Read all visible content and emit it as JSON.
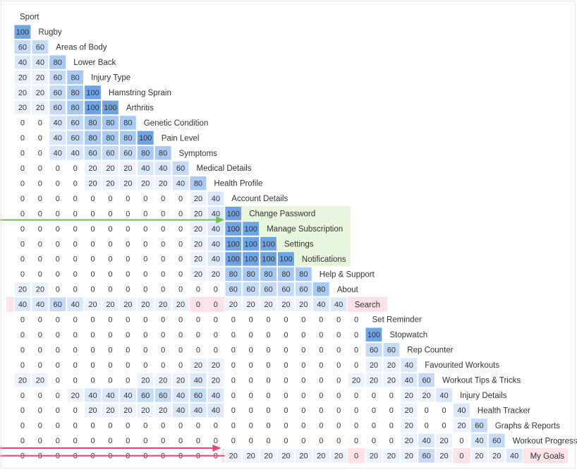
{
  "chart_data": {
    "type": "heatmap",
    "title": "",
    "labels": [
      "Sport",
      "Rugby",
      "Areas of Body",
      "Lower Back",
      "Injury Type",
      "Hamstring Sprain",
      "Arthritis",
      "Genetic Condition",
      "Pain Level",
      "Symptoms",
      "Medical Details",
      "Health Profile",
      "Account Details",
      "Change Password",
      "Manage Subscription",
      "Settings",
      "Notifications",
      "Help & Support",
      "About",
      "Search",
      "Set Reminder",
      "Stopwatch",
      "Rep Counter",
      "Favourited Workouts",
      "Workout Tips & Tricks",
      "Injury Details",
      "Health Tracker",
      "Graphs & Reports",
      "Workout Progress",
      "My Goals"
    ],
    "rows": [
      [],
      [
        100
      ],
      [
        60,
        60
      ],
      [
        40,
        40,
        80
      ],
      [
        20,
        20,
        60,
        80
      ],
      [
        20,
        20,
        60,
        80,
        100
      ],
      [
        20,
        20,
        60,
        80,
        100,
        100
      ],
      [
        0,
        0,
        40,
        60,
        80,
        80,
        80
      ],
      [
        0,
        0,
        40,
        60,
        80,
        80,
        80,
        100
      ],
      [
        0,
        0,
        40,
        40,
        60,
        60,
        60,
        80,
        80
      ],
      [
        0,
        0,
        0,
        0,
        20,
        20,
        20,
        40,
        40,
        60
      ],
      [
        0,
        0,
        0,
        0,
        20,
        20,
        20,
        20,
        20,
        40,
        80
      ],
      [
        0,
        0,
        0,
        0,
        0,
        0,
        0,
        0,
        0,
        0,
        20,
        40
      ],
      [
        0,
        0,
        0,
        0,
        0,
        0,
        0,
        0,
        0,
        0,
        20,
        40,
        100
      ],
      [
        0,
        0,
        0,
        0,
        0,
        0,
        0,
        0,
        0,
        0,
        20,
        40,
        100,
        100
      ],
      [
        0,
        0,
        0,
        0,
        0,
        0,
        0,
        0,
        0,
        0,
        20,
        40,
        100,
        100,
        100
      ],
      [
        0,
        0,
        0,
        0,
        0,
        0,
        0,
        0,
        0,
        0,
        20,
        40,
        100,
        100,
        100,
        100
      ],
      [
        0,
        0,
        0,
        0,
        0,
        0,
        0,
        0,
        0,
        0,
        20,
        20,
        80,
        80,
        80,
        80,
        80
      ],
      [
        20,
        20,
        0,
        0,
        0,
        0,
        0,
        0,
        0,
        0,
        0,
        0,
        60,
        60,
        60,
        60,
        60,
        80
      ],
      [
        40,
        40,
        60,
        40,
        20,
        20,
        20,
        20,
        20,
        20,
        0,
        0,
        20,
        20,
        20,
        20,
        20,
        40,
        40
      ],
      [
        0,
        0,
        0,
        0,
        0,
        0,
        0,
        0,
        0,
        0,
        0,
        0,
        0,
        0,
        0,
        0,
        0,
        0,
        0,
        0
      ],
      [
        0,
        0,
        0,
        0,
        0,
        0,
        0,
        0,
        0,
        0,
        0,
        0,
        0,
        0,
        0,
        0,
        0,
        0,
        0,
        0,
        100
      ],
      [
        0,
        0,
        0,
        0,
        0,
        0,
        0,
        0,
        0,
        0,
        0,
        0,
        0,
        0,
        0,
        0,
        0,
        0,
        0,
        0,
        60,
        60
      ],
      [
        0,
        0,
        0,
        0,
        0,
        0,
        0,
        0,
        0,
        0,
        20,
        20,
        0,
        0,
        0,
        0,
        0,
        0,
        0,
        0,
        20,
        20,
        40
      ],
      [
        20,
        20,
        0,
        0,
        0,
        0,
        0,
        20,
        20,
        20,
        40,
        20,
        0,
        0,
        0,
        0,
        0,
        0,
        0,
        20,
        20,
        20,
        40,
        60
      ],
      [
        0,
        0,
        0,
        20,
        40,
        40,
        40,
        60,
        60,
        40,
        60,
        40,
        0,
        0,
        0,
        0,
        0,
        0,
        0,
        0,
        0,
        0,
        20,
        20,
        40
      ],
      [
        0,
        0,
        0,
        0,
        20,
        20,
        20,
        20,
        20,
        40,
        40,
        40,
        0,
        0,
        0,
        0,
        0,
        0,
        0,
        0,
        0,
        0,
        20,
        0,
        0,
        40
      ],
      [
        0,
        0,
        0,
        0,
        0,
        0,
        0,
        0,
        0,
        0,
        0,
        0,
        0,
        0,
        0,
        0,
        0,
        0,
        0,
        0,
        0,
        0,
        20,
        0,
        0,
        20,
        60
      ],
      [
        0,
        0,
        0,
        0,
        0,
        0,
        0,
        0,
        0,
        0,
        0,
        0,
        0,
        0,
        0,
        0,
        0,
        0,
        0,
        0,
        0,
        0,
        20,
        40,
        20,
        0,
        40,
        60
      ],
      [
        0,
        0,
        0,
        0,
        0,
        0,
        0,
        0,
        0,
        0,
        0,
        0,
        20,
        20,
        20,
        20,
        20,
        20,
        20,
        0,
        20,
        20,
        20,
        60,
        20,
        0,
        20,
        20,
        40
      ]
    ],
    "highlights": [
      {
        "rows": [
          13,
          16
        ],
        "color": "#e9f5dc",
        "arrow_color": "#6cc24a"
      },
      {
        "rows": [
          19,
          19
        ],
        "color": "#fbe3e8"
      },
      {
        "rows": [
          29,
          29
        ],
        "color": "#fbe3e8",
        "arrow_color": "#e8457a"
      }
    ],
    "colors": {
      "c0": "#ffffff",
      "c20": "#edf3fc",
      "c40": "#dbe8fa",
      "c60": "#c6dbf6",
      "c80": "#a8c9f2",
      "c100": "#6fa4e4",
      "text": "#333333",
      "grid": "#e4e4e4"
    }
  }
}
